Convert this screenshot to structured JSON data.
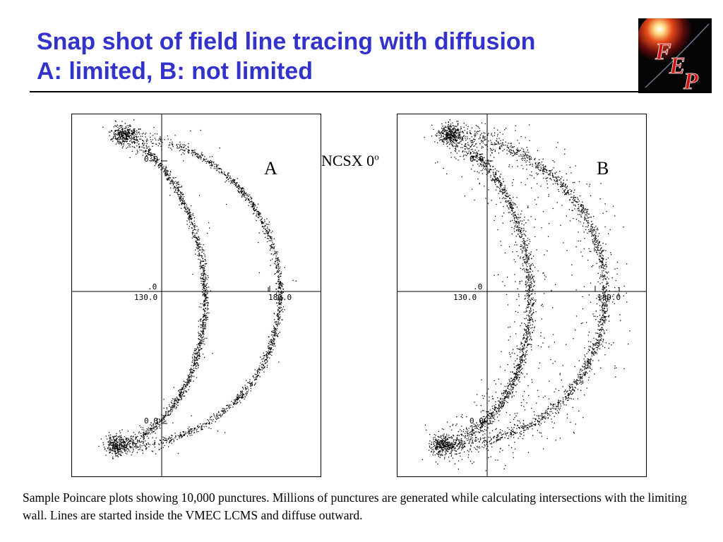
{
  "slide": {
    "title_line1": "Snap shot of field line tracing with diffusion",
    "title_line2": "A: limited, B: not limited",
    "logo_text": "FEP",
    "ncsx_label": "NCSX 0",
    "ncsx_superscript": "o",
    "caption": "Sample Poincare plots showing 10,000 punctures. Millions of punctures are generated while calculating intersections with the limiting wall. Lines are started inside the VMEC LCMS and diffuse outward."
  },
  "colors": {
    "title": "#3333cc",
    "logo_red": "#cc1111",
    "logo_bg": "#050505"
  },
  "plots": [
    {
      "id": "A",
      "label": "A",
      "ticks": {
        "y_top": "0.0",
        "y_mid": ".0",
        "y_bottom": "0.0",
        "x_left": "130.0",
        "x_right": "180.0"
      }
    },
    {
      "id": "B",
      "label": "B",
      "ticks": {
        "y_top": "0.0",
        "y_mid": ".0",
        "y_bottom": "0.0",
        "x_left": "130.0",
        "x_right": "180.0"
      }
    }
  ]
}
